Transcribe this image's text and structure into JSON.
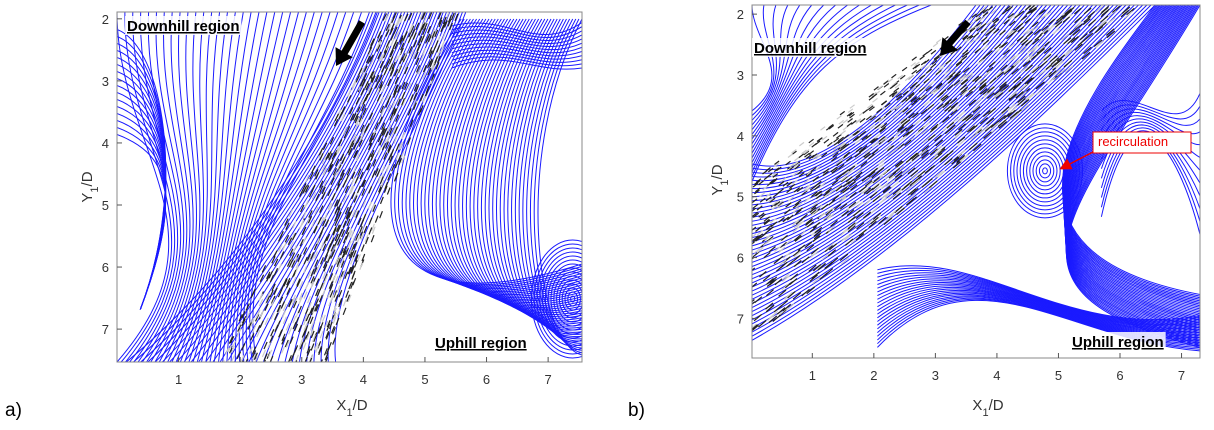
{
  "chart_data": [
    {
      "type": "streamline",
      "panel_label": "a)",
      "x_label": {
        "parts": [
          "X",
          "1",
          "/D"
        ]
      },
      "y_label": {
        "parts": [
          "Y",
          "1",
          "/D"
        ]
      },
      "xlim": [
        0,
        7.55
      ],
      "ylim": [
        1.89,
        7.53
      ],
      "xticks": [
        1,
        2,
        3,
        4,
        5,
        6,
        7
      ],
      "yticks": [
        2,
        3,
        4,
        5,
        6,
        7
      ],
      "annotations": [
        "Downhill region",
        "Uphill region"
      ]
    },
    {
      "type": "streamline",
      "panel_label": "b)",
      "x_label": {
        "parts": [
          "X",
          "1",
          "/D"
        ]
      },
      "y_label": {
        "parts": [
          "Y",
          "1",
          "/D"
        ]
      },
      "xlim": [
        0.02,
        7.3
      ],
      "ylim": [
        1.85,
        7.65
      ],
      "xticks": [
        1,
        2,
        3,
        4,
        5,
        6,
        7
      ],
      "yticks": [
        2,
        3,
        4,
        5,
        6,
        7
      ],
      "annotations": [
        "Downhill region",
        "Uphill region",
        "recirculation"
      ]
    }
  ]
}
